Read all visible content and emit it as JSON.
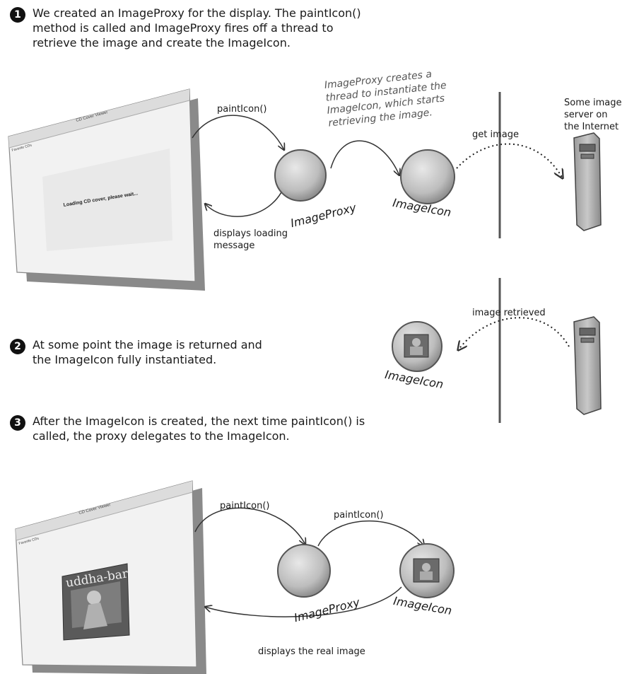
{
  "steps": [
    {
      "number": "1",
      "text": "We created an ImageProxy for the display.  The paintIcon()\nmethod is called and  ImageProxy fires off a thread to\nretrieve the image and create the ImageIcon."
    },
    {
      "number": "2",
      "text": "At some point the image is returned and\nthe ImageIcon fully instantiated."
    },
    {
      "number": "3",
      "text": "After the ImageIcon is created, the next time paintIcon() is\ncalled, the proxy delegates to the ImageIcon."
    }
  ],
  "window1": {
    "title": "CD Cover Viewer",
    "menu": "Favorite CDs",
    "message": "Loading CD cover, please wait..."
  },
  "window3": {
    "title": "CD Cover Viewer",
    "menu": "Favorite CDs",
    "cover_text": "uddha-bar"
  },
  "labels": {
    "paint1": "paintIcon()",
    "displays_loading": "displays loading\nmessage",
    "proxy_note": "ImageProxy creates a\nthread to instantiate the\nImageIcon, which starts\nretrieving the image.",
    "get_image": "get image",
    "server_label": "Some image\nserver on\nthe Internet",
    "image_retrieved": "image retrieved",
    "paint3a": "paintIcon()",
    "paint3b": "paintIcon()",
    "displays_real": "displays the real image"
  },
  "nodes": {
    "proxy1": "ImageProxy",
    "icon1": "ImageIcon",
    "icon2": "ImageIcon",
    "proxy3": "ImageProxy",
    "icon3": "ImageIcon"
  }
}
